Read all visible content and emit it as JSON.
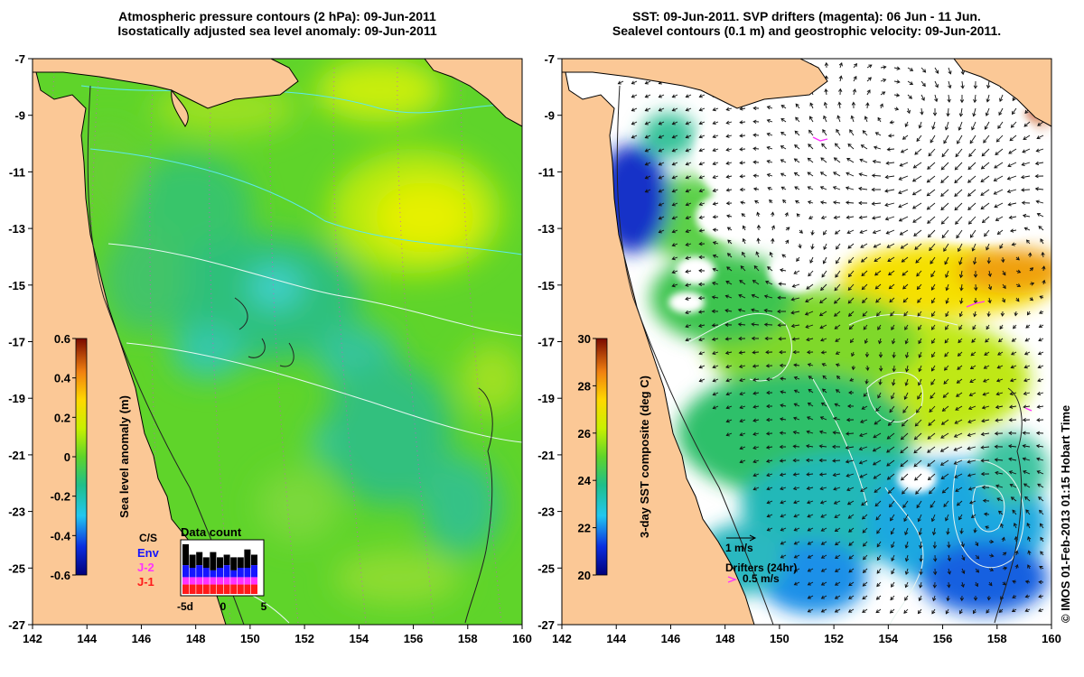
{
  "left_panel": {
    "title_line1": "Atmospheric pressure contours (2 hPa): 09-Jun-2011",
    "title_line2": "Isostatically adjusted sea level anomaly: 09-Jun-2011",
    "colorbar": {
      "label": "Sea level anomaly (m)",
      "ticks": [
        "0.6",
        "0.4",
        "0.2",
        "0",
        "-0.2",
        "-0.4",
        "-0.6"
      ],
      "range": [
        -0.6,
        0.6
      ]
    },
    "inset": {
      "title": "Data count",
      "xticks": [
        "-5d",
        "0",
        "5"
      ],
      "legend": [
        {
          "label": "Env",
          "color": "#1515ff"
        },
        {
          "label": "J-2",
          "color": "#ff33ff"
        },
        {
          "label": "J-1",
          "color": "#ff1a1a"
        }
      ],
      "extra_label": "C/S"
    }
  },
  "right_panel": {
    "title_line1": "SST: 09-Jun-2011. SVP drifters (magenta): 06 Jun - 11 Jun.",
    "title_line2": "Sealevel contours (0.1 m) and geostrophic velocity: 09-Jun-2011.",
    "colorbar": {
      "label": "3-day SST composite (deg C)",
      "ticks": [
        "30",
        "28",
        "26",
        "24",
        "22",
        "20"
      ],
      "range": [
        20,
        30
      ]
    },
    "vector_scale_label": "1 m/s",
    "drifters_label": "Drifters (24hr)",
    "drifter_scale_label": "0.5 m/s"
  },
  "axes": {
    "lon_ticks": [
      "142",
      "144",
      "146",
      "148",
      "150",
      "152",
      "154",
      "156",
      "158",
      "160"
    ],
    "lat_ticks": [
      "-7",
      "-9",
      "-11",
      "-13",
      "-15",
      "-17",
      "-19",
      "-21",
      "-23",
      "-25",
      "-27"
    ],
    "lon_range": [
      142,
      160
    ],
    "lat_range": [
      -27,
      -7
    ]
  },
  "footer_credit": "© IMOS 01-Feb-2013 01:15 Hobart Time",
  "colors": {
    "land": "#fbc896",
    "no_data": "#ffffff",
    "drifter": "#ff33ff"
  }
}
